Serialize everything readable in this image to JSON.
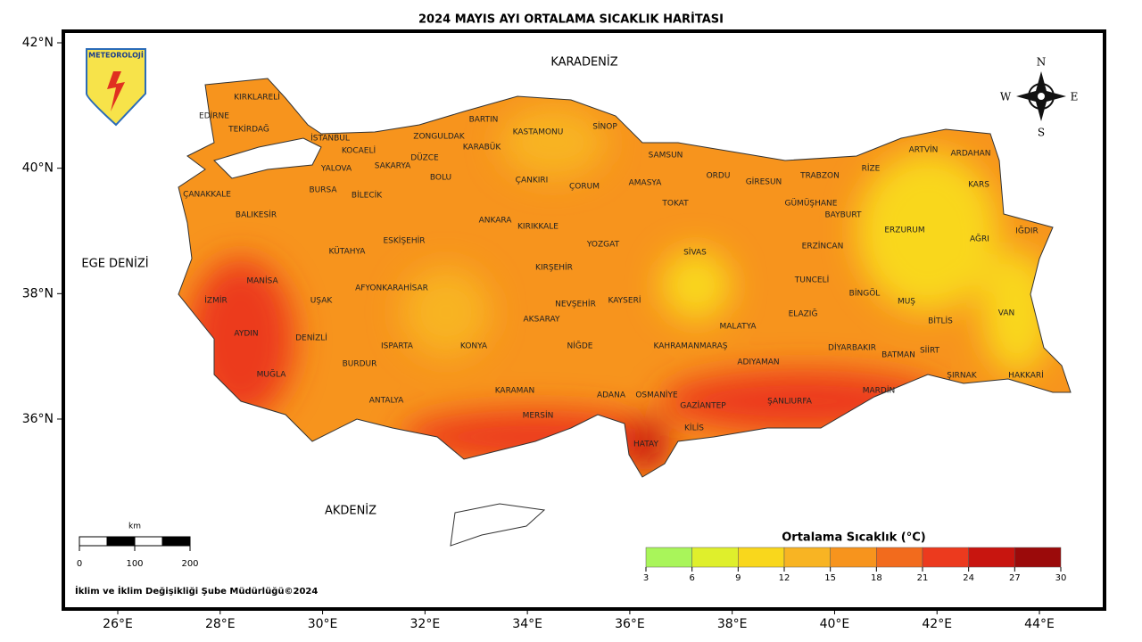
{
  "title": "2024 MAYIS AYI ORTALAMA SICAKLIK HARİTASI",
  "logo": "METEOROLOJİ",
  "compass": {
    "n": "N",
    "s": "S",
    "e": "E",
    "w": "W"
  },
  "seas": [
    "KARADENİZ",
    "EGE DENİZİ",
    "AKDENİZ"
  ],
  "provinces": [
    "KIRKLARELİ",
    "EDİRNE",
    "TEKİRDAĞ",
    "İSTANBUL",
    "KOCAELİ",
    "YALOVA",
    "SAKARYA",
    "DÜZCE",
    "ZONGULDAK",
    "BARTIN",
    "KARABÜK",
    "KASTAMONU",
    "SİNOP",
    "SAMSUN",
    "BOLU",
    "BURSA",
    "BİLECİK",
    "ÇANAKKALE",
    "BALIKESİR",
    "ÇANKIRI",
    "ÇORUM",
    "AMASYA",
    "ORDU",
    "GİRESUN",
    "TRABZON",
    "RİZE",
    "ARTVİN",
    "ARDAHAN",
    "KARS",
    "GÜMÜŞHANE",
    "BAYBURT",
    "TOKAT",
    "ANKARA",
    "KIRIKKALE",
    "ESKİŞEHİR",
    "YOZGAT",
    "SİVAS",
    "ERZİNCAN",
    "ERZURUM",
    "AĞRI",
    "IĞDIR",
    "KÜTAHYA",
    "KIRŞEHİR",
    "MANİSA",
    "AFYONKARAHİSAR",
    "TUNCELİ",
    "BİNGÖL",
    "İZMİR",
    "UŞAK",
    "NEVŞEHİR",
    "KAYSERİ",
    "MUŞ",
    "BİTLİS",
    "VAN",
    "ELAZIĞ",
    "AKSARAY",
    "MALATYA",
    "AYDIN",
    "DENİZLİ",
    "ISPARTA",
    "KONYA",
    "NİĞDE",
    "KAHRAMANMARAŞ",
    "DİYARBAKIR",
    "SİİRT",
    "BATMAN",
    "ADIYAMAN",
    "BURDUR",
    "MUĞLA",
    "HAKKARİ",
    "ŞIRNAK",
    "KARAMAN",
    "ADANA",
    "OSMANİYE",
    "MARDİN",
    "ANTALYA",
    "ŞANLIURFA",
    "GAZİANTEP",
    "MERSİN",
    "KİLİS",
    "HATAY"
  ],
  "lat_ticks": [
    {
      "value": 42,
      "label": "42°N"
    },
    {
      "value": 40,
      "label": "40°N"
    },
    {
      "value": 38,
      "label": "38°N"
    },
    {
      "value": 36,
      "label": "36°N"
    }
  ],
  "lon_ticks": [
    {
      "value": 26,
      "label": "26°E"
    },
    {
      "value": 28,
      "label": "28°E"
    },
    {
      "value": 30,
      "label": "30°E"
    },
    {
      "value": 32,
      "label": "32°E"
    },
    {
      "value": 34,
      "label": "34°E"
    },
    {
      "value": 36,
      "label": "36°E"
    },
    {
      "value": 38,
      "label": "38°E"
    },
    {
      "value": 40,
      "label": "40°E"
    },
    {
      "value": 42,
      "label": "42°E"
    },
    {
      "value": 44,
      "label": "44°E"
    }
  ],
  "legend": {
    "title": "Ortalama Sıcaklık (°C)",
    "ticks": [
      3,
      6,
      9,
      12,
      15,
      18,
      21,
      24,
      27,
      30
    ],
    "colors": [
      "#a9f55a",
      "#dfef2c",
      "#f9d71c",
      "#f8b423",
      "#f7941d",
      "#f26b1d",
      "#ec3a1e",
      "#c8150f",
      "#9b0a0a"
    ]
  },
  "scale_bar": {
    "unit": "km",
    "ticks": [
      0,
      100,
      200
    ]
  },
  "credit": "İklim ve İklim Değişikliği Şube Müdürlüğü©2024"
}
